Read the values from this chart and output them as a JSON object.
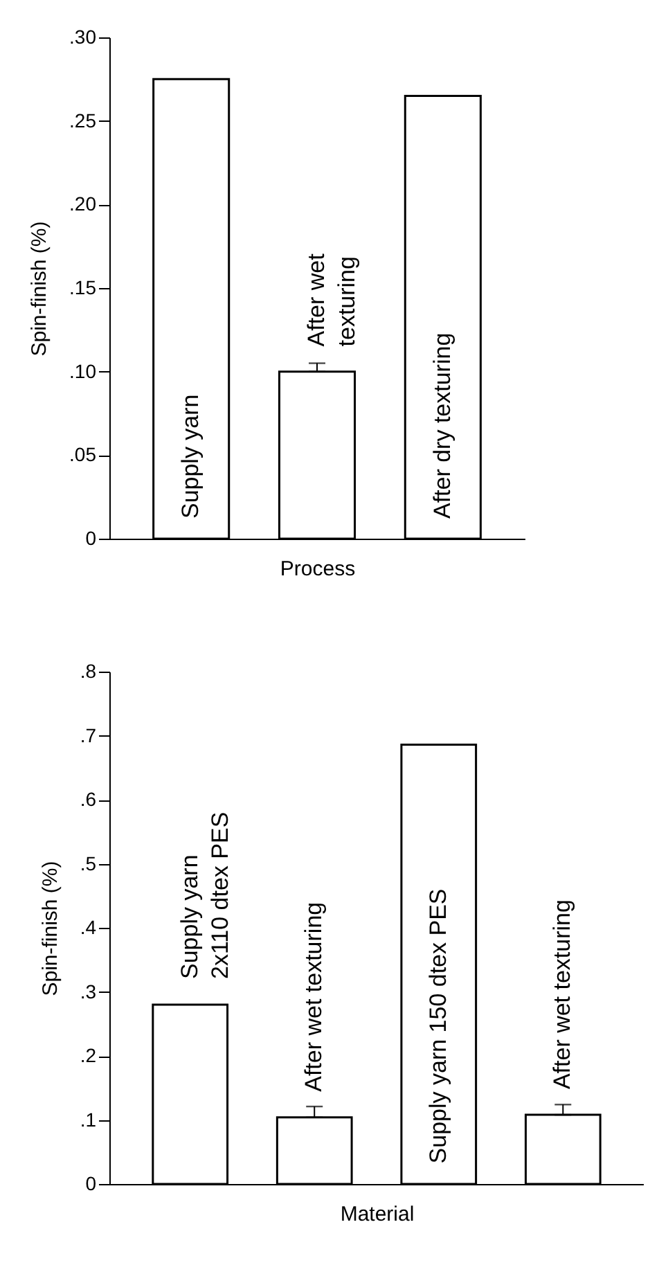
{
  "chart_data": [
    {
      "type": "bar",
      "xlabel": "Process",
      "ylabel": "Spin-finish (%)",
      "color": "#ffffff",
      "categories": [
        "Supply yarn",
        "After wet\ntexturing",
        "After dry texturing"
      ],
      "values": [
        0.275,
        0.1,
        0.265
      ],
      "errors": [
        null,
        [
          0.1,
          0.105
        ],
        null
      ],
      "ylim": [
        0,
        0.3
      ],
      "yticks": [
        0,
        {
          "value": 0.05,
          "label": ".05"
        },
        {
          "value": 0.1,
          "label": ".10"
        },
        {
          "value": 0.15,
          "label": ".15"
        },
        {
          "value": 0.2,
          "label": ".20"
        },
        {
          "value": 0.25,
          "label": ".25"
        },
        {
          "value": 0.3,
          "label": ".30"
        }
      ],
      "grid": false
    },
    {
      "type": "bar",
      "xlabel": "Material",
      "ylabel": "Spin-finish (%)",
      "color": "#ffffff",
      "categories": [
        "Supply yarn\n2x110 dtex PES",
        "After wet texturing",
        "Supply yarn 150 dtex PES",
        "After wet texturing"
      ],
      "values": [
        0.28,
        0.104,
        0.686,
        0.108
      ],
      "errors": [
        null,
        [
          0.104,
          0.121
        ],
        null,
        [
          0.108,
          0.124
        ]
      ],
      "ylim": [
        0,
        0.8
      ],
      "yticks": [
        0,
        {
          "value": 0.1,
          "label": ".1"
        },
        {
          "value": 0.2,
          "label": ".2"
        },
        {
          "value": 0.3,
          "label": ".3"
        },
        {
          "value": 0.4,
          "label": ".4"
        },
        {
          "value": 0.5,
          "label": ".5"
        },
        {
          "value": 0.6,
          "label": ".6"
        },
        {
          "value": 0.7,
          "label": ".7"
        },
        {
          "value": 0.8,
          "label": ".8"
        }
      ],
      "grid": false
    }
  ]
}
